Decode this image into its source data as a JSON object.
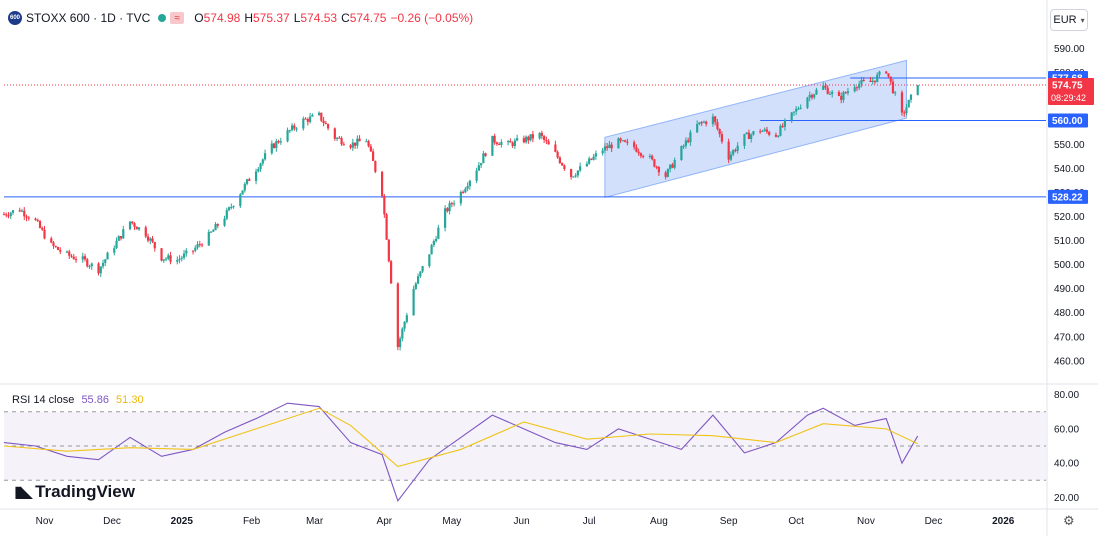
{
  "legend": {
    "symbol": "STOXX 600 · 1D · TVC",
    "logo_text": "600",
    "o_label": "O",
    "o": "574.98",
    "h_label": "H",
    "h": "575.37",
    "l_label": "L",
    "l": "574.53",
    "c_label": "C",
    "c": "574.75",
    "change": "−0.26 (−0.05%)"
  },
  "currency": "EUR",
  "rsi_legend": {
    "label": "RSI 14 close",
    "rsi": "55.86",
    "ma": "51.30"
  },
  "brand": "TradingView",
  "colors": {
    "up": "#26a69a",
    "down": "#f23645",
    "line": "#2962ff",
    "channel": "#c3d6fb",
    "rsi": "#7e57c2",
    "rsi_ma": "#f0c419",
    "price": "#f23645"
  },
  "chart_data": [
    {
      "type": "candlestick",
      "title": "STOXX 600 · 1D · TVC",
      "y_scale": "linear",
      "ylim": [
        452,
        596
      ],
      "y_ticks": [
        460,
        470,
        480,
        490,
        500,
        510,
        520,
        530,
        540,
        550,
        560,
        570,
        580,
        590
      ],
      "x_range": [
        "2024-10-14",
        "2026-01-20"
      ],
      "x_ticks": [
        {
          "date": "2024-11-01",
          "label": "Nov"
        },
        {
          "date": "2024-12-01",
          "label": "Dec"
        },
        {
          "date": "2025-01-01",
          "label": "2025"
        },
        {
          "date": "2025-02-01",
          "label": "Feb"
        },
        {
          "date": "2025-03-01",
          "label": "Mar"
        },
        {
          "date": "2025-04-01",
          "label": "Apr"
        },
        {
          "date": "2025-05-01",
          "label": "May"
        },
        {
          "date": "2025-06-01",
          "label": "Jun"
        },
        {
          "date": "2025-07-01",
          "label": "Jul"
        },
        {
          "date": "2025-08-01",
          "label": "Aug"
        },
        {
          "date": "2025-09-01",
          "label": "Sep"
        },
        {
          "date": "2025-10-01",
          "label": "Oct"
        },
        {
          "date": "2025-11-01",
          "label": "Nov"
        },
        {
          "date": "2025-12-01",
          "label": "Dec"
        },
        {
          "date": "2026-01-01",
          "label": "2026"
        }
      ],
      "close_path": [
        [
          "2024-10-14",
          521
        ],
        [
          "2024-10-21",
          523
        ],
        [
          "2024-10-28",
          518
        ],
        [
          "2024-11-04",
          508
        ],
        [
          "2024-11-11",
          504
        ],
        [
          "2024-11-18",
          502
        ],
        [
          "2024-11-25",
          498
        ],
        [
          "2024-12-02",
          508
        ],
        [
          "2024-12-09",
          518
        ],
        [
          "2024-12-16",
          513
        ],
        [
          "2024-12-23",
          503
        ],
        [
          "2024-12-30",
          502
        ],
        [
          "2025-01-06",
          506
        ],
        [
          "2025-01-13",
          512
        ],
        [
          "2025-01-20",
          520
        ],
        [
          "2025-01-27",
          530
        ],
        [
          "2025-02-03",
          540
        ],
        [
          "2025-02-10",
          549
        ],
        [
          "2025-02-17",
          555
        ],
        [
          "2025-02-24",
          560
        ],
        [
          "2025-03-03",
          562
        ],
        [
          "2025-03-10",
          553
        ],
        [
          "2025-03-17",
          550
        ],
        [
          "2025-03-24",
          552
        ],
        [
          "2025-03-31",
          530
        ],
        [
          "2025-04-07",
          466
        ],
        [
          "2025-04-14",
          490
        ],
        [
          "2025-04-21",
          505
        ],
        [
          "2025-04-28",
          522
        ],
        [
          "2025-05-05",
          530
        ],
        [
          "2025-05-12",
          540
        ],
        [
          "2025-05-19",
          552
        ],
        [
          "2025-05-26",
          550
        ],
        [
          "2025-06-02",
          552
        ],
        [
          "2025-06-09",
          554
        ],
        [
          "2025-06-16",
          546
        ],
        [
          "2025-06-23",
          537
        ],
        [
          "2025-06-30",
          542
        ],
        [
          "2025-07-07",
          548
        ],
        [
          "2025-07-14",
          551
        ],
        [
          "2025-07-21",
          549
        ],
        [
          "2025-07-28",
          544
        ],
        [
          "2025-08-04",
          537
        ],
        [
          "2025-08-11",
          548
        ],
        [
          "2025-08-18",
          558
        ],
        [
          "2025-08-25",
          561
        ],
        [
          "2025-09-01",
          545
        ],
        [
          "2025-09-08",
          553
        ],
        [
          "2025-09-15",
          556
        ],
        [
          "2025-09-22",
          554
        ],
        [
          "2025-09-29",
          562
        ],
        [
          "2025-10-06",
          570
        ],
        [
          "2025-10-13",
          574
        ],
        [
          "2025-10-20",
          569
        ],
        [
          "2025-10-27",
          575
        ],
        [
          "2025-11-03",
          576
        ],
        [
          "2025-11-10",
          581
        ],
        [
          "2025-11-17",
          562
        ],
        [
          "2025-11-24",
          574.75
        ]
      ],
      "horizontal_lines": [
        {
          "value": 577.68,
          "label": "577.68",
          "from": "2025-10-25"
        },
        {
          "value": 560.0,
          "label": "560.00",
          "from": "2025-09-15"
        },
        {
          "value": 528.22,
          "label": "528.22",
          "from": "2024-10-14"
        }
      ],
      "channel": {
        "start_date": "2025-07-08",
        "end_date": "2025-11-19",
        "upper": [
          553,
          585
        ],
        "lower": [
          528,
          561
        ]
      },
      "last_price": {
        "value": 574.75,
        "label": "574.75",
        "countdown": "08:29:42"
      }
    },
    {
      "type": "line",
      "title": "RSI 14 close",
      "ylim": [
        15,
        85
      ],
      "y_ticks": [
        20,
        40,
        60,
        80
      ],
      "y_tick_labels": [
        "20.00",
        "40.00",
        "60.00",
        "80.00"
      ],
      "bands": [
        30,
        50,
        70
      ],
      "series": [
        {
          "name": "RSI 14 close",
          "color": "#7e57c2",
          "points": [
            [
              "2024-10-14",
              52
            ],
            [
              "2024-10-28",
              50
            ],
            [
              "2024-11-11",
              44
            ],
            [
              "2024-11-25",
              42
            ],
            [
              "2024-12-09",
              55
            ],
            [
              "2024-12-23",
              44
            ],
            [
              "2025-01-06",
              48
            ],
            [
              "2025-01-20",
              58
            ],
            [
              "2025-02-03",
              66
            ],
            [
              "2025-02-17",
              75
            ],
            [
              "2025-03-03",
              73
            ],
            [
              "2025-03-17",
              52
            ],
            [
              "2025-03-31",
              45
            ],
            [
              "2025-04-07",
              18
            ],
            [
              "2025-04-21",
              42
            ],
            [
              "2025-05-05",
              55
            ],
            [
              "2025-05-19",
              68
            ],
            [
              "2025-06-02",
              60
            ],
            [
              "2025-06-16",
              52
            ],
            [
              "2025-06-30",
              48
            ],
            [
              "2025-07-14",
              60
            ],
            [
              "2025-07-28",
              54
            ],
            [
              "2025-08-11",
              48
            ],
            [
              "2025-08-25",
              68
            ],
            [
              "2025-09-08",
              46
            ],
            [
              "2025-09-22",
              52
            ],
            [
              "2025-10-06",
              68
            ],
            [
              "2025-10-13",
              72
            ],
            [
              "2025-10-27",
              62
            ],
            [
              "2025-11-10",
              66
            ],
            [
              "2025-11-17",
              40
            ],
            [
              "2025-11-24",
              55.86
            ]
          ]
        },
        {
          "name": "MA",
          "color": "#f0c419",
          "points": [
            [
              "2024-10-14",
              50
            ],
            [
              "2024-11-11",
              47
            ],
            [
              "2024-12-09",
              49
            ],
            [
              "2025-01-06",
              48
            ],
            [
              "2025-02-03",
              60
            ],
            [
              "2025-03-03",
              72
            ],
            [
              "2025-03-17",
              62
            ],
            [
              "2025-04-07",
              38
            ],
            [
              "2025-05-05",
              48
            ],
            [
              "2025-06-02",
              64
            ],
            [
              "2025-06-30",
              54
            ],
            [
              "2025-07-28",
              57
            ],
            [
              "2025-08-25",
              56
            ],
            [
              "2025-09-22",
              52
            ],
            [
              "2025-10-13",
              63
            ],
            [
              "2025-11-10",
              60
            ],
            [
              "2025-11-24",
              51.3
            ]
          ]
        }
      ]
    }
  ]
}
